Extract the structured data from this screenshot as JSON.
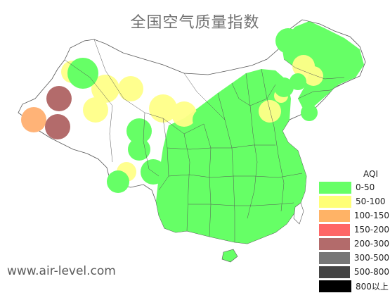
{
  "title": "全国空气质量指数",
  "credit": "www.air-level.com",
  "legend": {
    "title": "AQI",
    "items": [
      {
        "label": "0-50",
        "color": "#66ff66"
      },
      {
        "label": "50-100",
        "color": "#ffff77"
      },
      {
        "label": "100-150",
        "color": "#ffb366"
      },
      {
        "label": "150-200",
        "color": "#ff6666"
      },
      {
        "label": "200-300",
        "color": "#b36b6b"
      },
      {
        "label": "300-500",
        "color": "#777777"
      },
      {
        "label": "500-800",
        "color": "#444444"
      },
      {
        "label": "800以上",
        "color": "#000000"
      }
    ]
  },
  "colors": {
    "good": "#66ff66",
    "moderate": "#ffff88",
    "sensitive": "#ffb377",
    "unhealthy": "#b36b6b",
    "border": "#555555"
  }
}
